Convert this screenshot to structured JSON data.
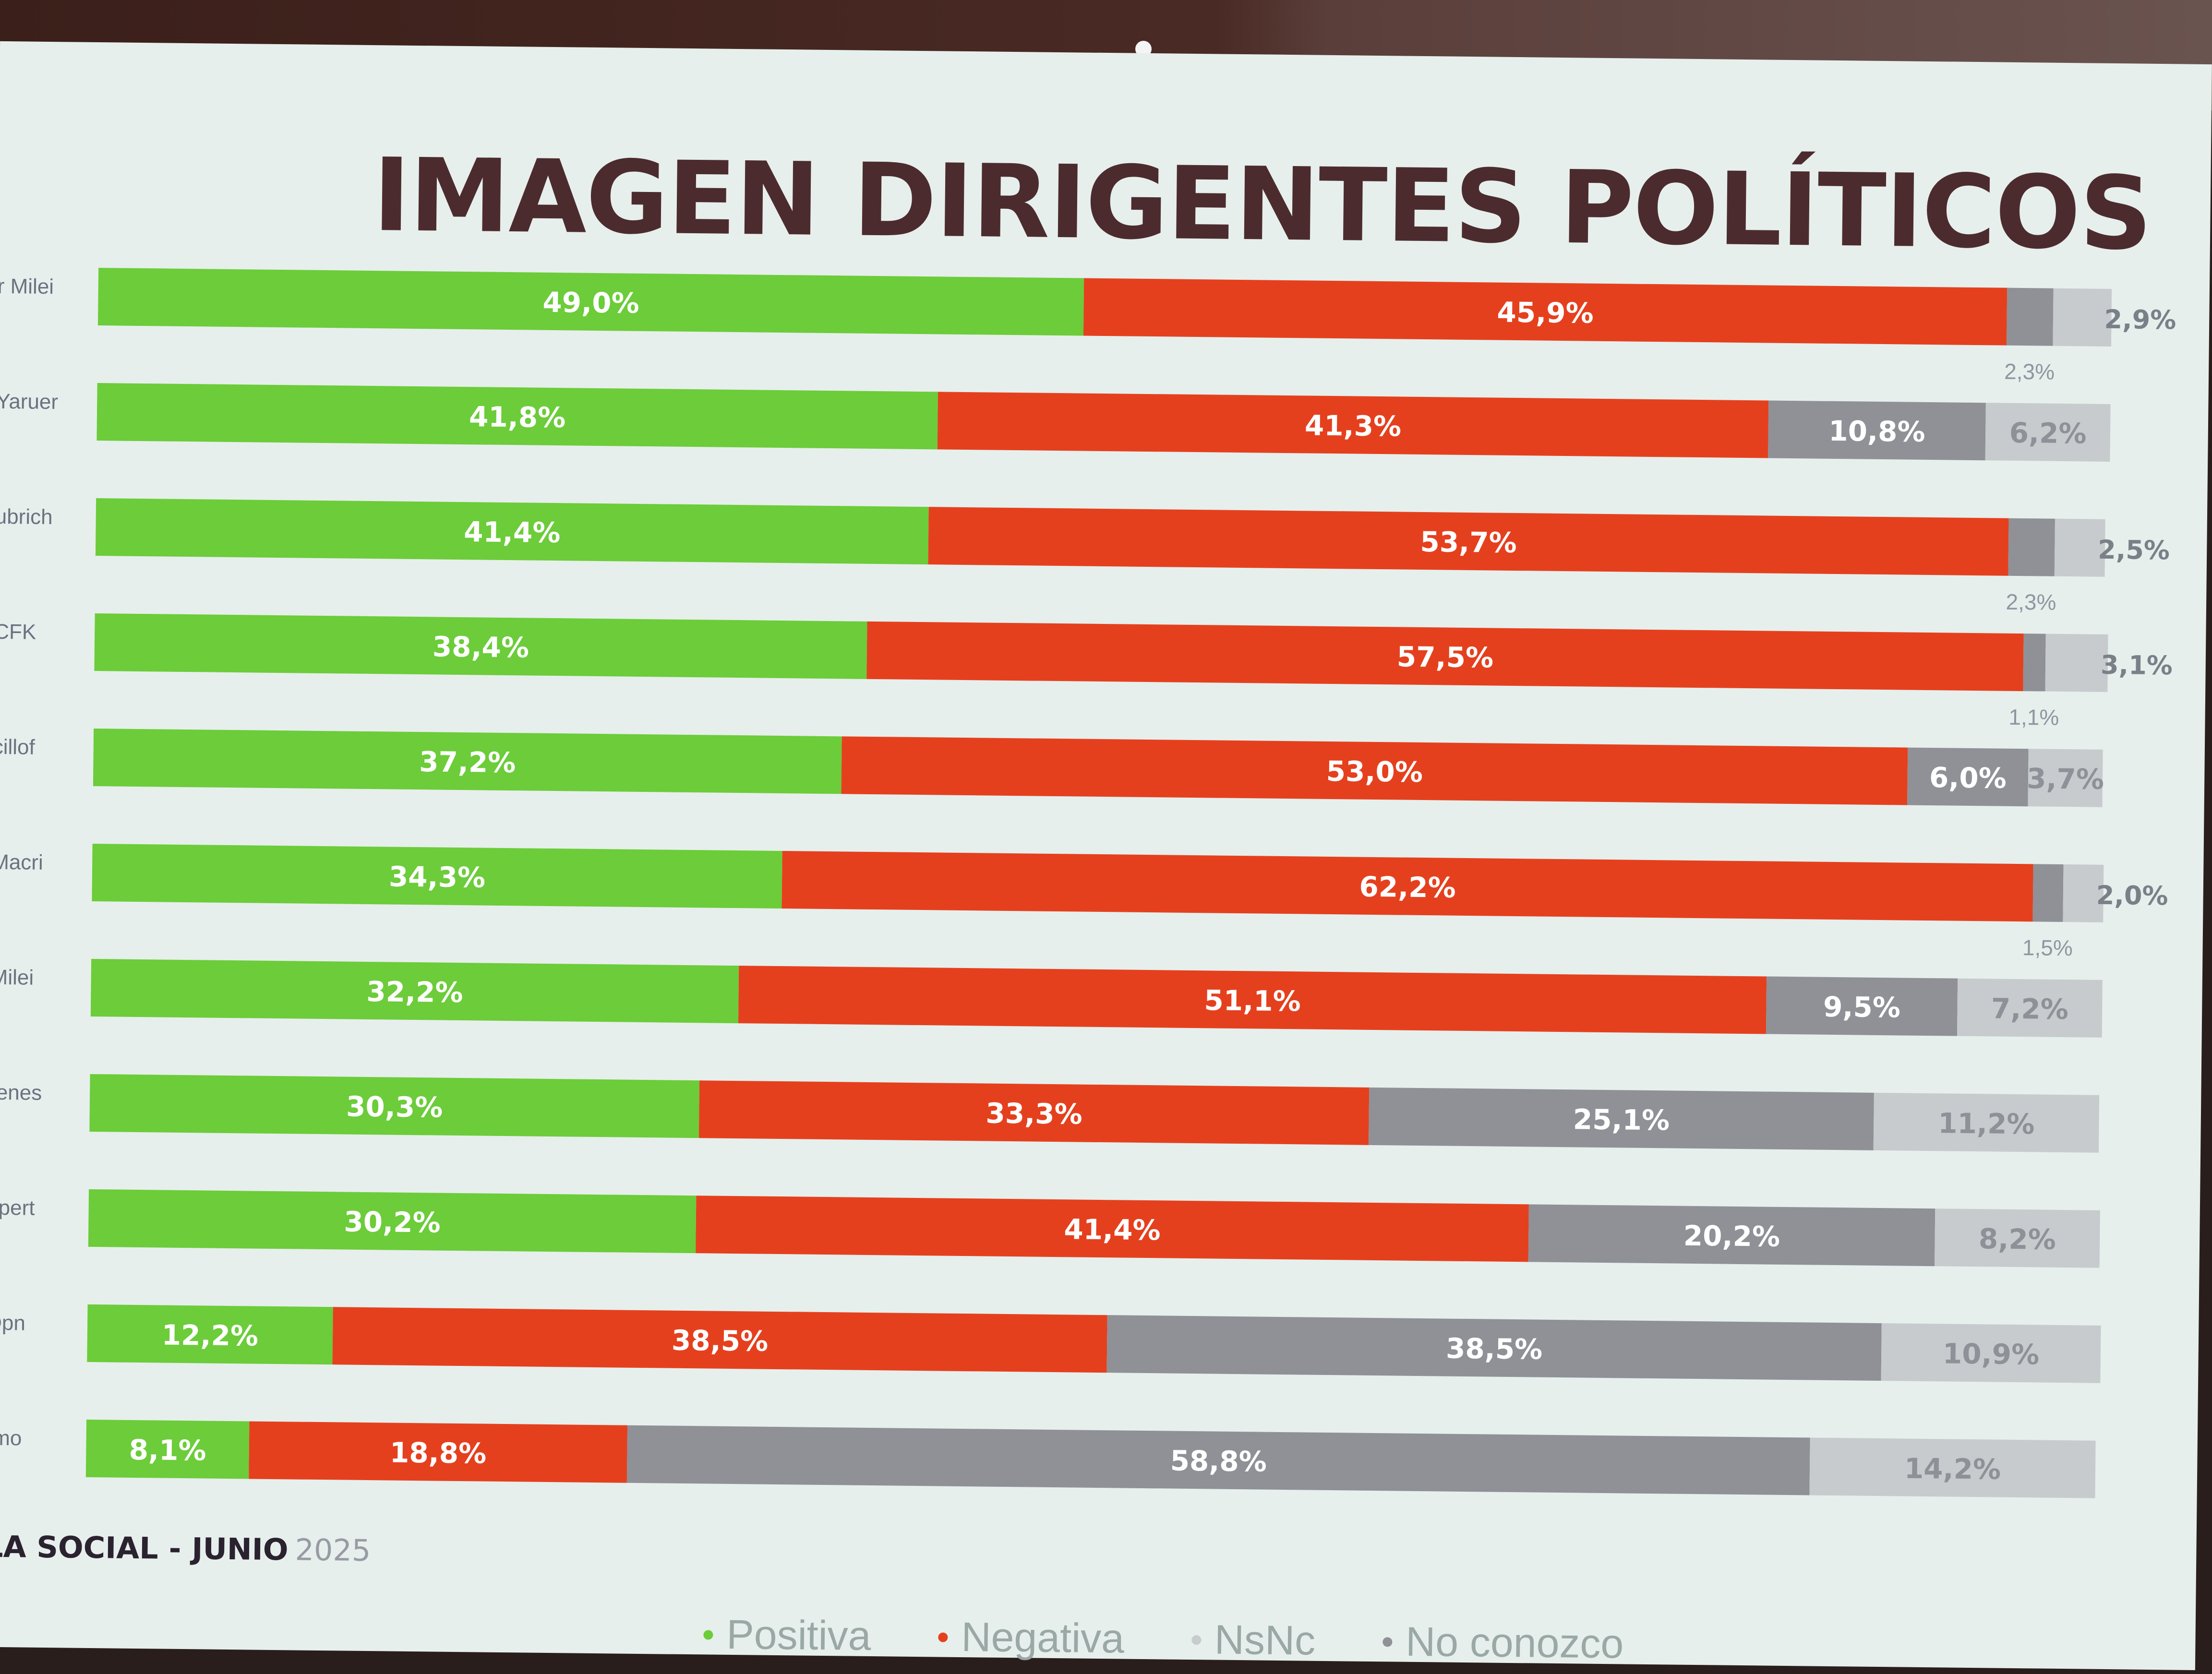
{
  "title": "IMAGEN DIRIGENTES POLÍTICOS",
  "source": {
    "org": "LA SOCIAL",
    "month": "JUNIO",
    "year": "2025"
  },
  "legend": [
    {
      "label": "Positiva",
      "color": "#6ccc3a"
    },
    {
      "label": "Negativa",
      "color": "#e5401e"
    },
    {
      "label": "NsNc",
      "color": "#8f9197"
    },
    {
      "label": "No conozco",
      "color": "#c7cbcd"
    }
  ],
  "chart_data": {
    "type": "bar",
    "orientation": "horizontal",
    "stacked": true,
    "categories": [
      "r Milei",
      "Yaruer",
      "ubrich",
      "CFK",
      "cillof",
      "Macri",
      "Milei",
      "renes",
      "spert",
      "Dpn",
      "rmo"
    ],
    "series": [
      {
        "name": "Positiva",
        "color": "#6ccc3a",
        "values": [
          49.0,
          41.8,
          41.4,
          38.4,
          37.2,
          34.3,
          32.2,
          30.3,
          30.2,
          12.2,
          8.1
        ]
      },
      {
        "name": "Negativa",
        "color": "#e5401e",
        "values": [
          45.9,
          41.3,
          53.7,
          57.5,
          53.0,
          62.2,
          51.1,
          33.3,
          41.4,
          38.5,
          18.8
        ]
      },
      {
        "name": "NsNc",
        "color": "#8f9197",
        "values": [
          2.3,
          10.8,
          2.3,
          1.1,
          6.0,
          1.5,
          9.5,
          25.1,
          20.2,
          38.5,
          58.8
        ]
      },
      {
        "name": "No conozco",
        "color": "#c7cbcd",
        "values": [
          2.9,
          6.2,
          2.5,
          3.1,
          3.7,
          2.0,
          7.2,
          11.2,
          8.2,
          10.9,
          14.2
        ]
      }
    ],
    "value_labels": [
      [
        "49,0%",
        "45,9%",
        "2,3%",
        "2,9%"
      ],
      [
        "41,8%",
        "41,3%",
        "10,8%",
        "6,2%"
      ],
      [
        "41,4%",
        "53,7%",
        "2,3%",
        "2,5%"
      ],
      [
        "38,4%",
        "57,5%",
        "1,1%",
        "3,1%"
      ],
      [
        "37,2%",
        "53,0%",
        "6,0%",
        "3,7%"
      ],
      [
        "34,3%",
        "62,2%",
        "1,5%",
        "2,0%"
      ],
      [
        "32,2%",
        "51,1%",
        "9,5%",
        "7,2%"
      ],
      [
        "30,3%",
        "33,3%",
        "25,1%",
        "11,2%"
      ],
      [
        "30,2%",
        "41,4%",
        "20,2%",
        "8,2%"
      ],
      [
        "12,2%",
        "38,5%",
        "38,5%",
        "10,9%"
      ],
      [
        "8,1%",
        "18,8%",
        "58,8%",
        "14,2%"
      ]
    ]
  }
}
